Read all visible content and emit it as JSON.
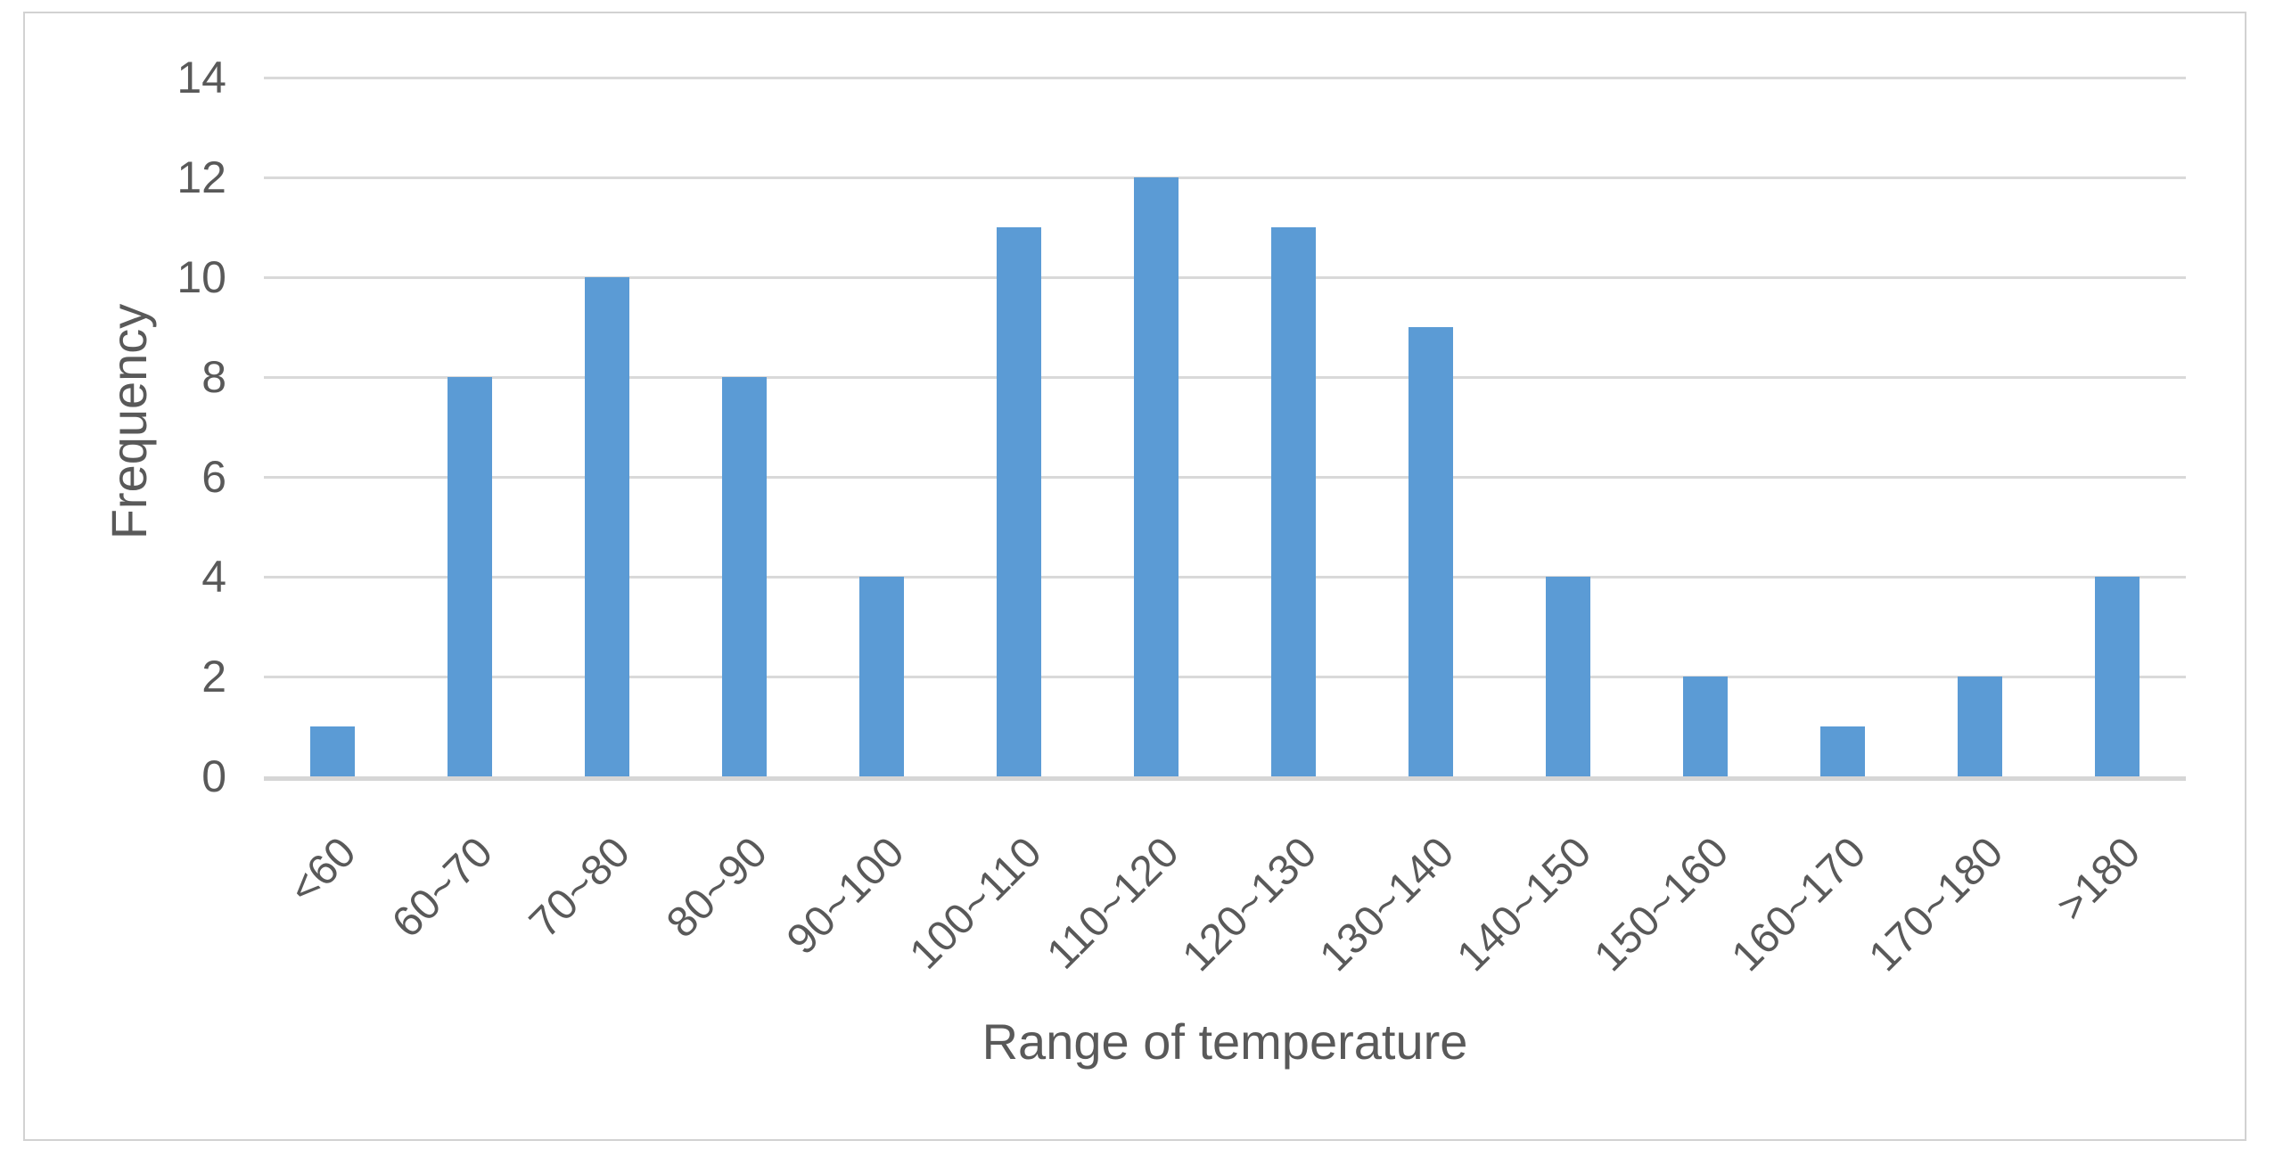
{
  "chart_data": {
    "type": "bar",
    "title": "",
    "xlabel": "Range of temperature",
    "ylabel": "Frequency",
    "categories": [
      "<60",
      "60~70",
      "70~80",
      "80~90",
      "90~100",
      "100~110",
      "110~120",
      "120~130",
      "130~140",
      "140~150",
      "150~160",
      "160~170",
      "170~180",
      ">180"
    ],
    "values": [
      1,
      8,
      10,
      8,
      4,
      11,
      12,
      11,
      9,
      4,
      2,
      1,
      2,
      4
    ],
    "ylim": [
      0,
      14
    ],
    "yticks": [
      0,
      2,
      4,
      6,
      8,
      10,
      12,
      14
    ],
    "grid": "horizontal",
    "legend_position": "none",
    "bar_color": "#5B9BD5"
  },
  "colors": {
    "bar": "#5B9BD5",
    "gridline": "#D9D9D9",
    "axis_line": "#D6D6D6",
    "text": "#595959",
    "frame_border": "#D2D2D2",
    "background": "#FFFFFF"
  }
}
